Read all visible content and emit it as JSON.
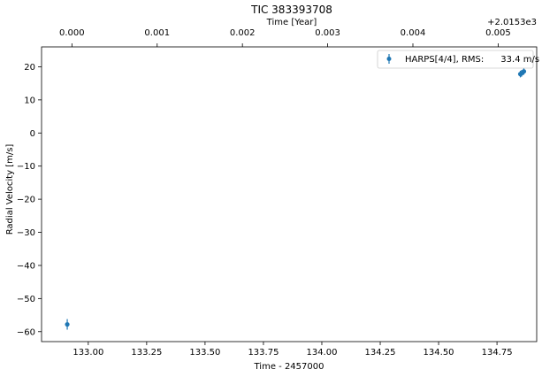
{
  "chart_data": {
    "type": "scatter",
    "title": "TIC 383393708",
    "xlabel": "Time - 2457000",
    "ylabel": "Radial Velocity [m/s]",
    "top_xlabel": "Time [Year]",
    "top_offset_text": "+2.0153e3",
    "xlim": [
      132.8,
      134.92
    ],
    "ylim": [
      -63,
      26
    ],
    "x_ticks": [
      133.0,
      133.25,
      133.5,
      133.75,
      134.0,
      134.25,
      134.5,
      134.75
    ],
    "x_tick_labels": [
      "133.00",
      "133.25",
      "133.50",
      "133.75",
      "134.00",
      "134.25",
      "134.50",
      "134.75"
    ],
    "y_ticks": [
      20,
      10,
      0,
      -10,
      -20,
      -30,
      -40,
      -50,
      -60
    ],
    "y_tick_labels": [
      "20",
      "10",
      "0",
      "−10",
      "−20",
      "−30",
      "−40",
      "−50",
      "−60"
    ],
    "top_x_ticks": [
      132.93,
      133.295,
      133.66,
      134.025,
      134.39,
      134.755
    ],
    "top_x_tick_labels": [
      "0.000",
      "0.001",
      "0.002",
      "0.003",
      "0.004",
      "0.005"
    ],
    "grid": false,
    "legend_position": "top-right",
    "series": [
      {
        "name": "HARPS[4/4], RMS:      33.4 m/s",
        "color": "#1f77b4",
        "points": [
          {
            "x": 132.91,
            "y": -57.8,
            "err": 1.6
          },
          {
            "x": 134.85,
            "y": 17.8,
            "err": 1.0
          },
          {
            "x": 134.855,
            "y": 18.0,
            "err": 1.0
          },
          {
            "x": 134.865,
            "y": 18.6,
            "err": 1.0
          }
        ]
      }
    ]
  }
}
